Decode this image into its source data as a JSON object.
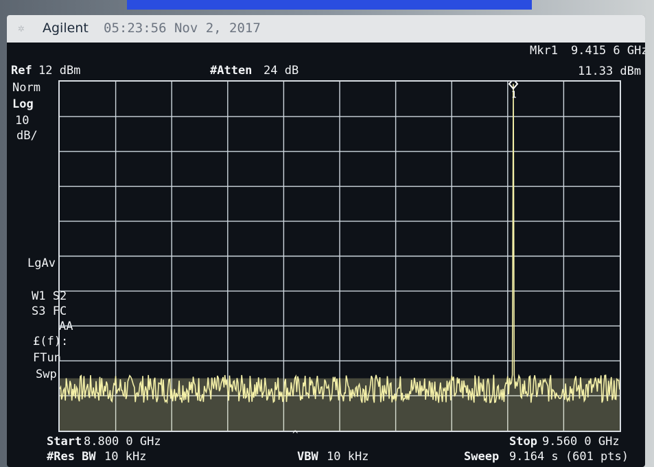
{
  "header": {
    "brand": "Agilent",
    "timestamp": "05:23:56  Nov 2, 2017"
  },
  "marker": {
    "label": "Mkr1",
    "frequency": "9.415 6 GHz",
    "amplitude": "11.33 dBm",
    "number": "1"
  },
  "top": {
    "ref_label": "Ref",
    "ref_value": "12 dBm",
    "atten_label": "#Atten",
    "atten_value": "24 dB"
  },
  "side": {
    "detector": "Norm",
    "scale_type": "Log",
    "scale_value": "10",
    "scale_unit": "dB/",
    "avg": "LgAv",
    "w1s2": "W1  S2",
    "s3fc": "S3  FC",
    "aa": "AA",
    "ff": "£(f):",
    "ftun": "FTun",
    "swp": "Swp"
  },
  "footer": {
    "start_label": "Start",
    "start_value": "8.800 0 GHz",
    "stop_label": "Stop",
    "stop_value": "9.560 0 GHz",
    "rbw_label": "#Res BW",
    "rbw_value": "10 kHz",
    "vbw_label": "VBW",
    "vbw_value": "10 kHz",
    "sweep_label": "Sweep",
    "sweep_value": "9.164 s (601 pts)"
  },
  "colors": {
    "trace": "#f4f0a8",
    "grid": "#cfd8df",
    "screen_bg": "#0e1218",
    "text": "#f2f4f6"
  },
  "chart_data": {
    "type": "line",
    "x_range_ghz": [
      8.8,
      9.56
    ],
    "y_ref_dbm": 12,
    "y_scale_db_per_div": 10,
    "y_divisions": 10,
    "x_divisions": 10,
    "points": 601,
    "noise_floor_dbm": -78,
    "peak": {
      "x_ghz": 9.4156,
      "y_dbm": 11.33
    },
    "grid": true
  }
}
